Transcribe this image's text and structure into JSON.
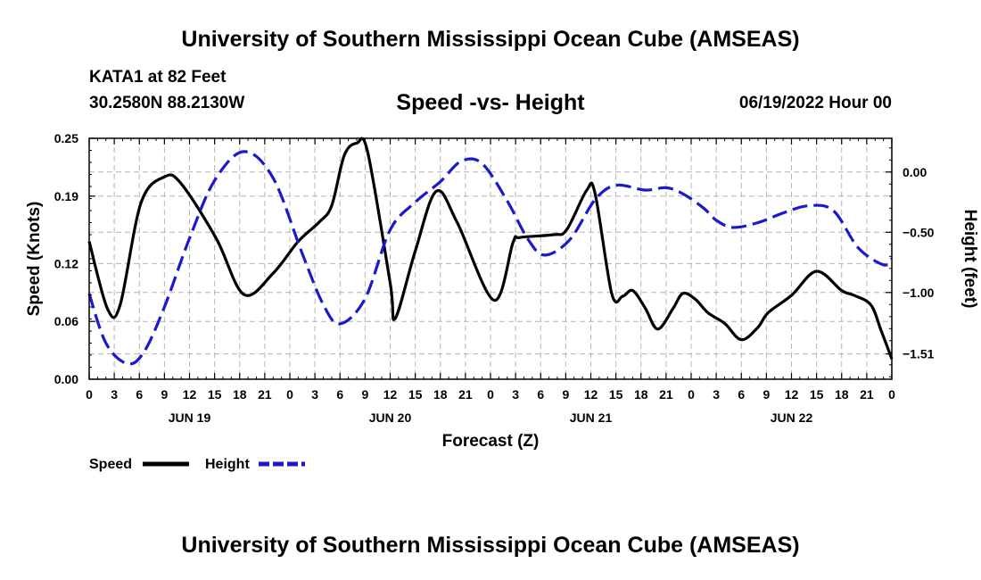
{
  "header": {
    "title": "University of Southern Mississippi Ocean Cube (AMSEAS)",
    "station": "KATA1 at 82 Feet",
    "coords": "30.2580N  88.2130W",
    "subtitle": "Speed -vs- Height",
    "datetime": "06/19/2022 Hour 00"
  },
  "footer": {
    "title": "University of Southern Mississippi Ocean Cube (AMSEAS)"
  },
  "colors": {
    "speed": "#000000",
    "height": "#1a1acc",
    "grid": "#b4b4b4"
  },
  "chart_data": {
    "type": "line",
    "xlabel": "Forecast (Z)",
    "ylabel": "Speed (Knots)",
    "y2label": "Height (feet)",
    "x_unit": "hours from 06/19/2022 00Z",
    "xlim": [
      0,
      96
    ],
    "ylim": [
      0,
      0.25
    ],
    "y2lim": [
      -1.72,
      0.28
    ],
    "y_ticks": [
      0.0,
      0.06,
      0.12,
      0.19,
      0.25
    ],
    "y_tick_labels": [
      "0.00",
      "0.06",
      "0.12",
      "0.19",
      "0.25"
    ],
    "y2_ticks": [
      -1.51,
      -1.0,
      -0.5,
      0.0
    ],
    "y2_tick_labels": [
      "−1.51",
      "−1.00",
      "−0.50",
      "0.00"
    ],
    "x_ticks": [
      0,
      3,
      6,
      9,
      12,
      15,
      18,
      21,
      24,
      27,
      30,
      33,
      36,
      39,
      42,
      45,
      48,
      51,
      54,
      57,
      60,
      63,
      66,
      69,
      72,
      75,
      78,
      81,
      84,
      87,
      90,
      93,
      96
    ],
    "x_tick_labels": [
      "0",
      "3",
      "6",
      "9",
      "12",
      "15",
      "18",
      "21",
      "0",
      "3",
      "6",
      "9",
      "12",
      "15",
      "18",
      "21",
      "0",
      "3",
      "6",
      "9",
      "12",
      "15",
      "18",
      "21",
      "0",
      "3",
      "6",
      "9",
      "12",
      "15",
      "18",
      "21",
      "0"
    ],
    "day_labels": [
      {
        "x": 12,
        "label": "JUN 19"
      },
      {
        "x": 36,
        "label": "JUN 20"
      },
      {
        "x": 60,
        "label": "JUN 21"
      },
      {
        "x": 84,
        "label": "JUN 22"
      }
    ],
    "series": [
      {
        "name": "Speed",
        "axis": "left",
        "style": "solid",
        "x": [
          0,
          2.2,
          3.7,
          6.2,
          9,
          11,
          15.2,
          18.5,
          22,
          25,
          27.5,
          29,
          30.5,
          32,
          33.3,
          36,
          36.6,
          39,
          41.5,
          44,
          48.4,
          50.7,
          51.5,
          55.5,
          57.1,
          59.5,
          60.5,
          62.5,
          63.8,
          65,
          66.5,
          68,
          69.8,
          71,
          72.5,
          74,
          76,
          78,
          80,
          81.2,
          84,
          87,
          90,
          91.5,
          93.5,
          94.7,
          96
        ],
        "y": [
          0.143,
          0.073,
          0.077,
          0.183,
          0.21,
          0.203,
          0.146,
          0.088,
          0.11,
          0.143,
          0.163,
          0.18,
          0.232,
          0.245,
          0.236,
          0.1,
          0.063,
          0.133,
          0.195,
          0.163,
          0.082,
          0.142,
          0.147,
          0.15,
          0.155,
          0.196,
          0.193,
          0.089,
          0.086,
          0.092,
          0.074,
          0.052,
          0.073,
          0.089,
          0.083,
          0.069,
          0.058,
          0.041,
          0.054,
          0.069,
          0.087,
          0.112,
          0.092,
          0.087,
          0.077,
          0.051,
          0.021
        ]
      },
      {
        "name": "Height",
        "axis": "right",
        "style": "dashed",
        "x": [
          0,
          2,
          4.5,
          6.5,
          9,
          12,
          15,
          18.5,
          22,
          25.5,
          28,
          30,
          33,
          36,
          39,
          42,
          44.5,
          47,
          50,
          52.5,
          54.5,
          57.5,
          60.5,
          63,
          66.5,
          69,
          71,
          73.5,
          75,
          77,
          80,
          83,
          86,
          89,
          92,
          95,
          96
        ],
        "y": [
          -1.01,
          -1.42,
          -1.59,
          -1.5,
          -1.12,
          -0.55,
          -0.07,
          0.17,
          -0.05,
          -0.68,
          -1.1,
          -1.26,
          -1.05,
          -0.48,
          -0.25,
          -0.08,
          0.09,
          0.07,
          -0.24,
          -0.56,
          -0.69,
          -0.56,
          -0.23,
          -0.11,
          -0.15,
          -0.13,
          -0.18,
          -0.3,
          -0.4,
          -0.46,
          -0.42,
          -0.34,
          -0.28,
          -0.32,
          -0.63,
          -0.77,
          -0.72
        ]
      }
    ],
    "legend": [
      {
        "label": "Speed",
        "style": "solid"
      },
      {
        "label": "Height",
        "style": "dashed"
      }
    ]
  }
}
